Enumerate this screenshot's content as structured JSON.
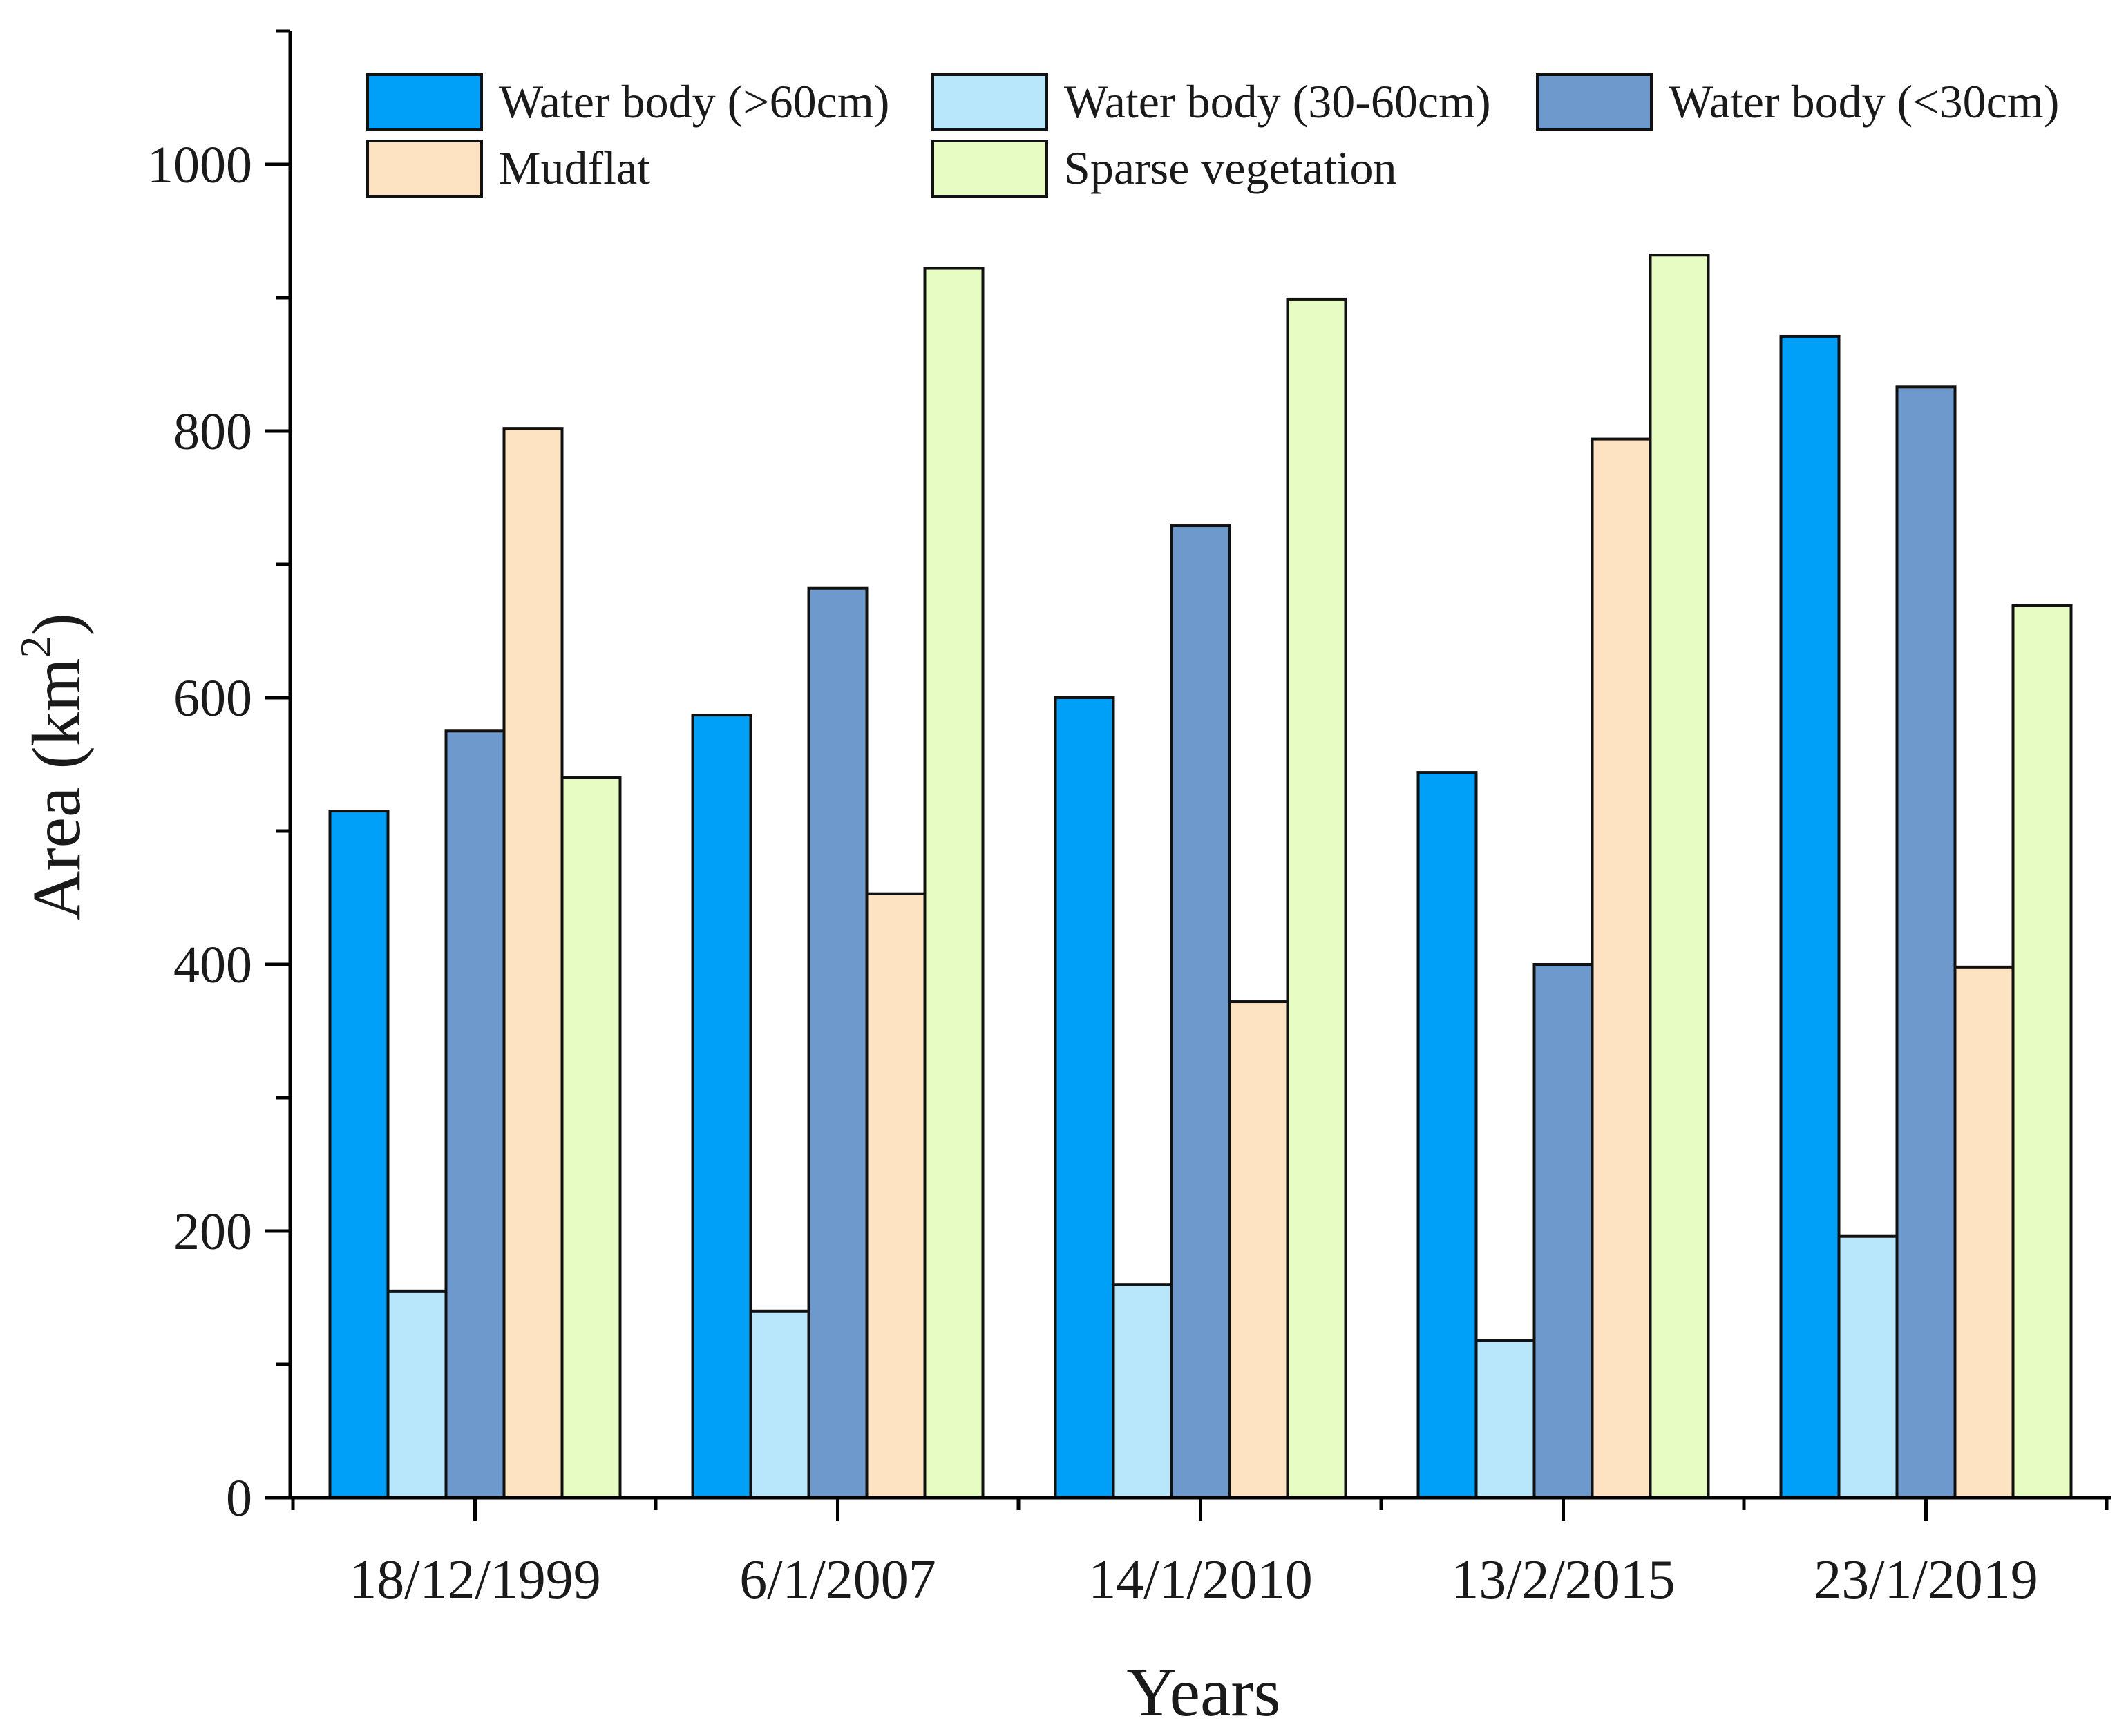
{
  "chart_data": {
    "type": "bar",
    "title": "",
    "xlabel": "Years",
    "ylabel": "Area (km",
    "ylabel_superscript": "2",
    "ylabel_close": ")",
    "ylim": [
      0,
      1100
    ],
    "yticks": [
      0,
      200,
      400,
      600,
      800,
      1000
    ],
    "categories": [
      "18/12/1999",
      "6/1/2007",
      "14/1/2010",
      "13/2/2015",
      "23/1/2019"
    ],
    "series": [
      {
        "name": "Water body (>60cm)",
        "color": "#00a0f8",
        "values": [
          515,
          587,
          600,
          544,
          871
        ]
      },
      {
        "name": "Water body (30-60cm)",
        "color": "#b8e6fb",
        "values": [
          155,
          140,
          160,
          118,
          196
        ]
      },
      {
        "name": "Water body (<30cm)",
        "color": "#6e99cc",
        "values": [
          575,
          682,
          729,
          400,
          833
        ]
      },
      {
        "name": "Mudflat",
        "color": "#fde3c2",
        "values": [
          802,
          453,
          372,
          794,
          398
        ]
      },
      {
        "name": "Sparse vegetation",
        "color": "#e6fcc2",
        "values": [
          540,
          922,
          899,
          932,
          669
        ]
      }
    ],
    "legend_position": "top",
    "grid": false
  }
}
